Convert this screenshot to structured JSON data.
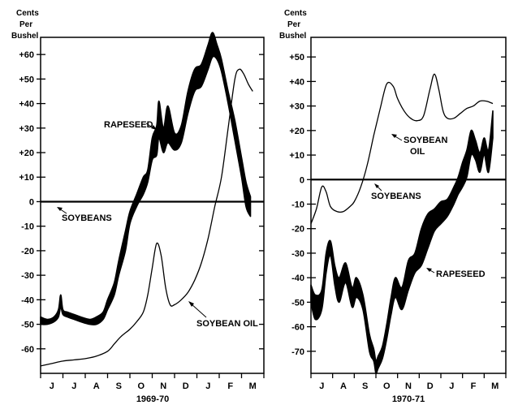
{
  "chart_data": [
    {
      "type": "line",
      "season": "1969-70",
      "unit_lines": [
        "Cents",
        "Per",
        "Bushel"
      ],
      "months": [
        "J",
        "J",
        "A",
        "S",
        "O",
        "N",
        "D",
        "J",
        "F",
        "M"
      ],
      "y_ticks": [
        "+60",
        "+50",
        "+40",
        "+30",
        "+20",
        "+10",
        "0",
        "-10",
        "-20",
        "-30",
        "-40",
        "-50",
        "-60"
      ],
      "ylim": [
        -70,
        67
      ],
      "xlim": [
        0,
        10
      ],
      "series": [
        {
          "name": "SOYBEANS",
          "style": "baseline",
          "x": [
            0,
            10
          ],
          "y": [
            0,
            0
          ]
        },
        {
          "name": "RAPESEED",
          "style": "band",
          "x": [
            0.0,
            0.3,
            0.6,
            0.8,
            0.9,
            1.0,
            1.2,
            1.5,
            1.8,
            2.2,
            2.5,
            2.8,
            3.0,
            3.3,
            3.5,
            3.8,
            4.0,
            4.3,
            4.6,
            4.8,
            5.0,
            5.2,
            5.3,
            5.5,
            5.7,
            6.0,
            6.3,
            6.6,
            6.9,
            7.2,
            7.5,
            7.7,
            7.9,
            8.1,
            8.4,
            8.7,
            9.0,
            9.2,
            9.4
          ],
          "low": [
            -50,
            -50,
            -49,
            -47,
            -43,
            -46,
            -47,
            -48,
            -49,
            -50,
            -50,
            -48,
            -44,
            -38,
            -30,
            -20,
            -9,
            -2,
            3,
            8,
            17,
            19,
            26,
            20,
            24,
            21,
            24,
            36,
            45,
            47,
            54,
            59,
            58,
            53,
            40,
            25,
            10,
            -2,
            -6
          ],
          "high": [
            -47,
            -48,
            -47,
            -44,
            -38,
            -44,
            -45,
            -46,
            -47,
            -48,
            -47,
            -45,
            -40,
            -33,
            -24,
            -12,
            -4,
            3,
            10,
            13,
            26,
            31,
            41,
            30,
            39,
            28,
            31,
            45,
            54,
            56,
            64,
            69,
            64,
            58,
            45,
            33,
            18,
            8,
            2
          ]
        },
        {
          "name": "SOYBEAN OIL",
          "style": "line",
          "x": [
            0.0,
            0.5,
            1.0,
            1.5,
            2.0,
            2.5,
            3.0,
            3.3,
            3.6,
            4.0,
            4.3,
            4.6,
            4.8,
            5.0,
            5.2,
            5.4,
            5.6,
            5.8,
            6.0,
            6.3,
            6.6,
            6.9,
            7.2,
            7.5,
            7.8,
            8.1,
            8.4,
            8.7,
            8.9,
            9.1,
            9.3,
            9.5
          ],
          "y": [
            -67,
            -66,
            -65,
            -64.5,
            -64,
            -63,
            -61,
            -58,
            -55,
            -52,
            -49,
            -45,
            -38,
            -27,
            -17,
            -22,
            -35,
            -42,
            -42,
            -40,
            -37,
            -32,
            -25,
            -15,
            -2,
            10,
            30,
            50,
            54,
            52,
            48,
            45
          ]
        }
      ],
      "annotations": [
        {
          "text": "RAPESEED",
          "series": "RAPESEED"
        },
        {
          "text": "SOYBEANS",
          "series": "SOYBEANS"
        },
        {
          "text": "SOYBEAN OIL",
          "series": "SOYBEAN OIL"
        }
      ]
    },
    {
      "type": "line",
      "season": "1970-71",
      "unit_lines": [
        "Cents",
        "Per",
        "Bushel"
      ],
      "months": [
        "J",
        "A",
        "S",
        "O",
        "N",
        "D",
        "J",
        "F",
        "M"
      ],
      "y_ticks": [
        "+50",
        "+40",
        "+30",
        "+20",
        "+10",
        "0",
        "-10",
        "-20",
        "-30",
        "-40",
        "-50",
        "-60",
        "-70"
      ],
      "ylim": [
        -79,
        58
      ],
      "xlim": [
        0,
        9
      ],
      "series": [
        {
          "name": "SOYBEANS",
          "style": "baseline",
          "x": [
            0,
            9
          ],
          "y": [
            0,
            0
          ]
        },
        {
          "name": "SOYBEAN OIL",
          "style": "line",
          "x": [
            0.0,
            0.25,
            0.5,
            0.7,
            0.9,
            1.2,
            1.5,
            1.8,
            2.0,
            2.3,
            2.6,
            2.9,
            3.2,
            3.5,
            3.8,
            4.0,
            4.3,
            4.6,
            4.9,
            5.2,
            5.5,
            5.7,
            5.9,
            6.1,
            6.3,
            6.6,
            6.9,
            7.2,
            7.5,
            7.8,
            8.1,
            8.4
          ],
          "y": [
            -18,
            -12,
            -3,
            -5,
            -11,
            -13,
            -13,
            -11,
            -9,
            -3,
            6,
            18,
            29,
            39,
            38,
            33,
            28,
            25,
            24,
            26,
            37,
            43,
            37,
            28,
            25,
            25,
            27,
            29,
            30,
            32,
            32,
            31
          ]
        },
        {
          "name": "RAPESEED",
          "style": "band",
          "x": [
            0.0,
            0.2,
            0.5,
            0.7,
            0.9,
            1.1,
            1.3,
            1.6,
            1.9,
            2.1,
            2.4,
            2.7,
            2.9,
            3.0,
            3.1,
            3.3,
            3.5,
            3.7,
            3.9,
            4.2,
            4.5,
            4.8,
            5.1,
            5.4,
            5.7,
            6.0,
            6.3,
            6.6,
            6.8,
            7.0,
            7.2,
            7.4,
            7.6,
            7.8,
            8.0,
            8.2,
            8.4
          ],
          "low": [
            -50,
            -57,
            -53,
            -38,
            -31,
            -43,
            -50,
            -42,
            -52,
            -48,
            -53,
            -70,
            -74,
            -79,
            -77,
            -73,
            -65,
            -55,
            -48,
            -53,
            -45,
            -38,
            -35,
            -28,
            -21,
            -18,
            -15,
            -10,
            -6,
            -3,
            1,
            10,
            8,
            3,
            10,
            3,
            17
          ],
          "high": [
            -43,
            -47,
            -45,
            -30,
            -25,
            -35,
            -40,
            -34,
            -44,
            -40,
            -47,
            -63,
            -69,
            -74,
            -72,
            -68,
            -59,
            -48,
            -40,
            -44,
            -33,
            -30,
            -20,
            -14,
            -12,
            -9,
            -8,
            -3,
            1,
            7,
            12,
            20,
            16,
            11,
            17,
            12,
            28
          ]
        }
      ],
      "annotations": [
        {
          "text": "SOYBEAN",
          "text2": "OIL",
          "series": "SOYBEAN OIL"
        },
        {
          "text": "SOYBEANS",
          "series": "SOYBEANS"
        },
        {
          "text": "RAPESEED",
          "series": "RAPESEED"
        }
      ]
    }
  ]
}
